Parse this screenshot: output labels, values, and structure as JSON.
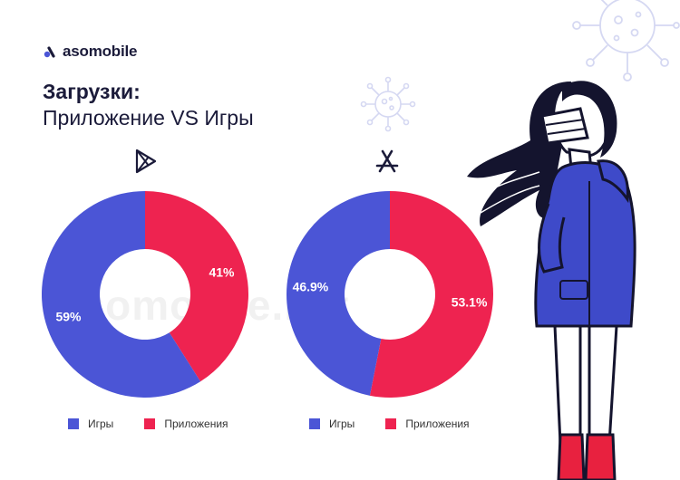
{
  "brand": {
    "name": "asomobile",
    "watermark": "asomobile.net"
  },
  "header": {
    "title": "Загрузки:",
    "subtitle": "Приложение VS Игры"
  },
  "colors": {
    "games": "#4b55d6",
    "apps": "#ee2350",
    "text": "#1b1b3a"
  },
  "icons": {
    "google_play": "google-play-icon",
    "app_store": "app-store-icon",
    "virus": "virus-icon"
  },
  "chart_data": [
    {
      "type": "pie",
      "store": "Google Play",
      "categories": [
        "Игры",
        "Приложения"
      ],
      "values": [
        59,
        41
      ],
      "labels": [
        "59%",
        "41%"
      ],
      "legend": [
        "Игры",
        "Приложения"
      ],
      "legend_position": "bottom"
    },
    {
      "type": "pie",
      "store": "App Store",
      "categories": [
        "Игры",
        "Приложения"
      ],
      "values": [
        46.9,
        53.1
      ],
      "labels": [
        "46.9%",
        "53.1%"
      ],
      "legend": [
        "Игры",
        "Приложения"
      ],
      "legend_position": "bottom"
    }
  ]
}
